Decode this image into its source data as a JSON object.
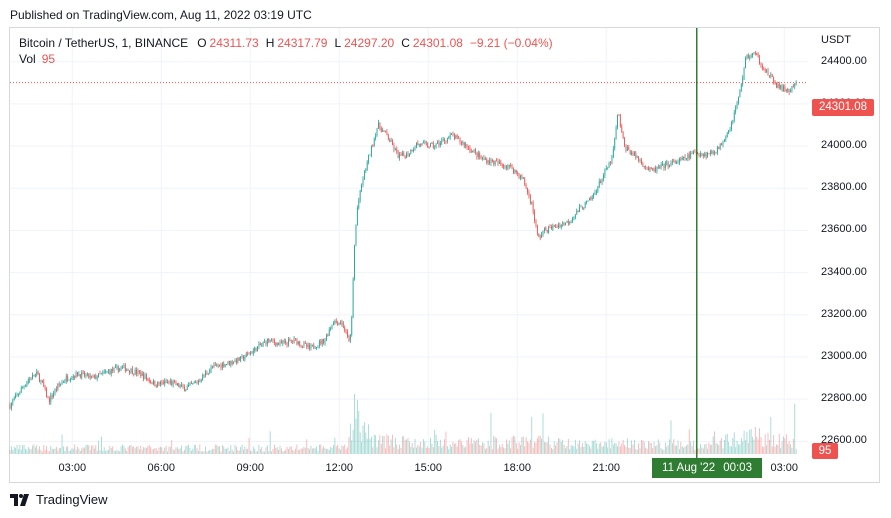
{
  "header": {
    "published": "Published on TradingView.com, Aug 11, 2022 03:19 UTC"
  },
  "legend": {
    "symbol": "Bitcoin / TetherUS, 1, BINANCE",
    "open_label": "O",
    "open": "24311.73",
    "high_label": "H",
    "high": "24317.79",
    "low_label": "L",
    "low": "24297.20",
    "close_label": "C",
    "close": "24301.08",
    "change": "−9.21 (−0.04%)",
    "vol_label": "Vol",
    "vol": "95"
  },
  "axis": {
    "currency": "USDT"
  },
  "price_tag": "24301.08",
  "vol_tag": "95",
  "cursor": {
    "date": "11 Aug '22",
    "time": "00:03"
  },
  "brand": {
    "name": "TradingView"
  },
  "colors": {
    "up": "#26a69a",
    "down": "#ef5350",
    "cursor": "#2e7d32",
    "grid": "#f0f3fa"
  },
  "chart_data": {
    "type": "candlestick",
    "symbol": "Bitcoin / TetherUS",
    "interval": "1",
    "exchange": "BINANCE",
    "currency": "USDT",
    "ylim": [
      22540,
      24560
    ],
    "y_ticks": [
      22600,
      22800,
      23000,
      23200,
      23400,
      23600,
      23800,
      24000,
      24200,
      24400
    ],
    "y_tick_labels": [
      "22600.00",
      "22800.00",
      "23000.00",
      "23200.00",
      "23400.00",
      "23600.00",
      "23800.00",
      "24000.00",
      "24200.00",
      "24400.00"
    ],
    "x_tick_labels": [
      "03:00",
      "06:00",
      "09:00",
      "12:00",
      "15:00",
      "18:00",
      "21:00",
      "03:00"
    ],
    "x_tick_hours": [
      3,
      6,
      9,
      12,
      15,
      18,
      21,
      27
    ],
    "x_range_hours": [
      0.9,
      27.8
    ],
    "last_price": 24301.08,
    "last_volume": 95,
    "cursor_hour": 24.05,
    "close_path": [
      [
        0.9,
        22770
      ],
      [
        1.2,
        22830
      ],
      [
        1.5,
        22890
      ],
      [
        1.8,
        22920
      ],
      [
        2.0,
        22870
      ],
      [
        2.2,
        22790
      ],
      [
        2.5,
        22860
      ],
      [
        2.8,
        22900
      ],
      [
        3.2,
        22920
      ],
      [
        3.7,
        22900
      ],
      [
        4.2,
        22930
      ],
      [
        4.7,
        22950
      ],
      [
        5.3,
        22920
      ],
      [
        5.8,
        22870
      ],
      [
        6.3,
        22880
      ],
      [
        6.8,
        22850
      ],
      [
        7.2,
        22880
      ],
      [
        7.7,
        22950
      ],
      [
        8.2,
        22970
      ],
      [
        8.7,
        22990
      ],
      [
        9.2,
        23040
      ],
      [
        9.6,
        23080
      ],
      [
        10.0,
        23060
      ],
      [
        10.5,
        23080
      ],
      [
        11.0,
        23040
      ],
      [
        11.5,
        23080
      ],
      [
        11.8,
        23170
      ],
      [
        12.1,
        23160
      ],
      [
        12.3,
        23080
      ],
      [
        12.4,
        23100
      ],
      [
        12.5,
        23500
      ],
      [
        12.6,
        23700
      ],
      [
        12.8,
        23850
      ],
      [
        13.1,
        24000
      ],
      [
        13.3,
        24100
      ],
      [
        13.6,
        24050
      ],
      [
        14.0,
        23950
      ],
      [
        14.3,
        23960
      ],
      [
        14.6,
        24010
      ],
      [
        15.2,
        24000
      ],
      [
        15.8,
        24050
      ],
      [
        16.3,
        24000
      ],
      [
        16.8,
        23940
      ],
      [
        17.3,
        23920
      ],
      [
        17.8,
        23900
      ],
      [
        18.2,
        23840
      ],
      [
        18.5,
        23720
      ],
      [
        18.7,
        23560
      ],
      [
        18.9,
        23600
      ],
      [
        19.3,
        23620
      ],
      [
        19.7,
        23640
      ],
      [
        20.1,
        23700
      ],
      [
        20.5,
        23750
      ],
      [
        20.9,
        23860
      ],
      [
        21.2,
        23940
      ],
      [
        21.4,
        24160
      ],
      [
        21.6,
        24000
      ],
      [
        22.0,
        23950
      ],
      [
        22.5,
        23880
      ],
      [
        23.0,
        23910
      ],
      [
        23.5,
        23930
      ],
      [
        24.0,
        23970
      ],
      [
        24.4,
        23960
      ],
      [
        24.8,
        23990
      ],
      [
        25.2,
        24100
      ],
      [
        25.5,
        24250
      ],
      [
        25.7,
        24420
      ],
      [
        26.0,
        24440
      ],
      [
        26.4,
        24350
      ],
      [
        26.8,
        24280
      ],
      [
        27.2,
        24260
      ],
      [
        27.4,
        24301
      ]
    ],
    "volume_levels": [
      [
        0.9,
        12
      ],
      [
        12.3,
        12
      ],
      [
        12.5,
        100
      ],
      [
        12.7,
        50
      ],
      [
        13.2,
        30
      ],
      [
        14.5,
        20
      ],
      [
        18.6,
        25
      ],
      [
        20.0,
        18
      ],
      [
        22.0,
        20
      ],
      [
        24.0,
        18
      ],
      [
        25.5,
        30
      ],
      [
        26.0,
        35
      ],
      [
        27.4,
        25
      ]
    ]
  }
}
